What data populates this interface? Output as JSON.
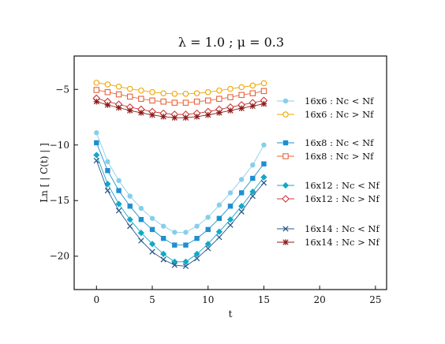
{
  "chart_data": {
    "type": "line",
    "title": "λ = 1.0 ; μ = 0.3",
    "xlabel": "t",
    "ylabel": "Ln [ | C(t) | ]",
    "xlim": [
      -2,
      26
    ],
    "ylim": [
      -23,
      -2
    ],
    "xticks": [
      0,
      5,
      10,
      15,
      20,
      25
    ],
    "yticks": [
      -5,
      -10,
      -15,
      -20
    ],
    "xtick_labels": [
      "0",
      "5",
      "10",
      "15",
      "20",
      "25"
    ],
    "ytick_labels": [
      "−5",
      "−10",
      "−15",
      "−20"
    ],
    "grid": false,
    "legend_position": "right",
    "x": [
      0,
      1,
      2,
      3,
      4,
      5,
      6,
      7,
      8,
      9,
      10,
      11,
      12,
      13,
      14,
      15
    ],
    "series": [
      {
        "name": "16x6 : Nc < Nf",
        "color": "#87ceeb",
        "marker": "circle",
        "values": [
          -8.9,
          -11.5,
          -13.2,
          -14.6,
          -15.7,
          -16.6,
          -17.3,
          -17.85,
          -17.85,
          -17.3,
          -16.5,
          -15.4,
          -14.3,
          -13.1,
          -11.8,
          -10.0
        ]
      },
      {
        "name": "16x6 : Nc > Nf",
        "color": "#f0a500",
        "marker": "circle-open",
        "values": [
          -4.4,
          -4.55,
          -4.75,
          -4.95,
          -5.1,
          -5.25,
          -5.35,
          -5.4,
          -5.4,
          -5.35,
          -5.25,
          -5.1,
          -4.95,
          -4.8,
          -4.65,
          -4.45
        ]
      },
      {
        "name": "16x8 : Nc < Nf",
        "color": "#1e8fd0",
        "marker": "square",
        "values": [
          -9.8,
          -12.3,
          -14.1,
          -15.5,
          -16.7,
          -17.6,
          -18.4,
          -19.0,
          -19.0,
          -18.4,
          -17.6,
          -16.6,
          -15.5,
          -14.3,
          -13.0,
          -11.7
        ]
      },
      {
        "name": "16x8 : Nc > Nf",
        "color": "#e8623a",
        "marker": "square-open",
        "values": [
          -5.05,
          -5.25,
          -5.45,
          -5.65,
          -5.85,
          -6.0,
          -6.1,
          -6.2,
          -6.2,
          -6.1,
          -6.0,
          -5.85,
          -5.7,
          -5.5,
          -5.35,
          -5.15
        ]
      },
      {
        "name": "16x12 : Nc < Nf",
        "color": "#12a8c8",
        "marker": "diamond",
        "values": [
          -10.9,
          -13.5,
          -15.3,
          -16.7,
          -17.9,
          -18.9,
          -19.8,
          -20.5,
          -20.5,
          -19.8,
          -18.9,
          -17.8,
          -16.7,
          -15.5,
          -14.2,
          -12.9
        ]
      },
      {
        "name": "16x12 : Nc > Nf",
        "color": "#d03838",
        "marker": "diamond-open",
        "values": [
          -5.8,
          -6.1,
          -6.35,
          -6.6,
          -6.8,
          -7.0,
          -7.15,
          -7.25,
          -7.25,
          -7.15,
          -7.0,
          -6.8,
          -6.6,
          -6.4,
          -6.2,
          -6.0
        ]
      },
      {
        "name": "16x14 : Nc < Nf",
        "color": "#2b5a8a",
        "marker": "x",
        "values": [
          -11.4,
          -14.1,
          -15.9,
          -17.3,
          -18.6,
          -19.6,
          -20.3,
          -20.8,
          -20.9,
          -20.2,
          -19.3,
          -18.3,
          -17.2,
          -16.0,
          -14.6,
          -13.4
        ]
      },
      {
        "name": "16x14 : Nc > Nf",
        "color": "#8c1a1a",
        "marker": "star",
        "values": [
          -6.1,
          -6.4,
          -6.65,
          -6.9,
          -7.1,
          -7.3,
          -7.45,
          -7.55,
          -7.55,
          -7.45,
          -7.3,
          -7.1,
          -6.9,
          -6.7,
          -6.5,
          -6.3
        ]
      }
    ]
  }
}
